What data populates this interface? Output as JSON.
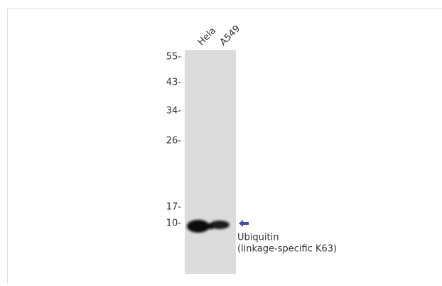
{
  "blot": {
    "lanes": [
      "Hela",
      "A549"
    ],
    "markers": [
      "55-",
      "43-",
      "34-",
      "26-",
      "17-",
      "10-"
    ],
    "target": {
      "name": "Ubiquitin",
      "detail": "(linkage-specific K63)"
    }
  }
}
